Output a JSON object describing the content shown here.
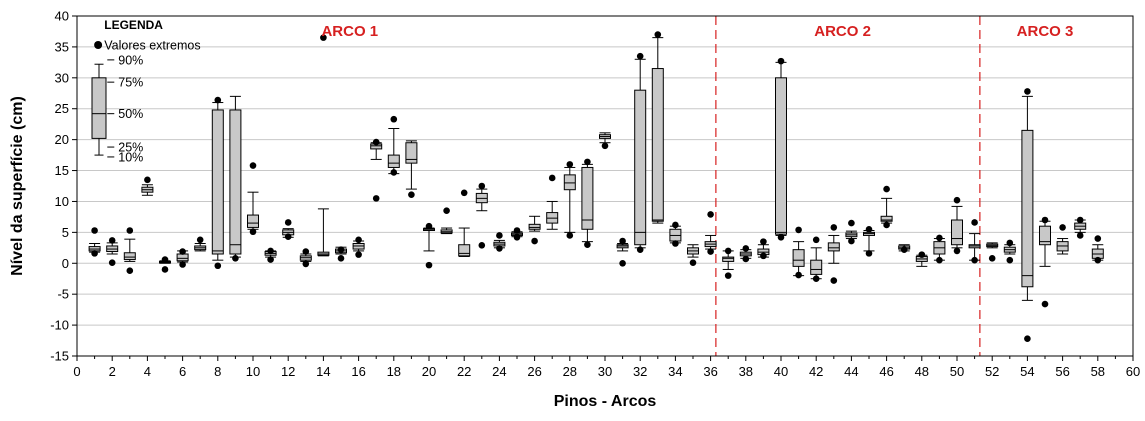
{
  "chart_data": {
    "type": "boxplot",
    "xlabel": "Pinos - Arcos",
    "ylabel": "Nível da superfície (cm)",
    "xlim": [
      0,
      60
    ],
    "ylim": [
      -15,
      40
    ],
    "xticks": [
      0,
      2,
      4,
      6,
      8,
      10,
      12,
      14,
      16,
      18,
      20,
      22,
      24,
      26,
      28,
      30,
      32,
      34,
      36,
      38,
      40,
      42,
      44,
      46,
      48,
      50,
      52,
      54,
      56,
      58,
      60
    ],
    "yticks": [
      -15,
      -10,
      -5,
      0,
      5,
      10,
      15,
      20,
      25,
      30,
      35,
      40
    ],
    "grid": "horizontal",
    "legend": {
      "title": "LEGENDA",
      "outlier_label": "Valores extremos",
      "p90": "90%",
      "p75": "75%",
      "p50": "50%",
      "p25": "25%",
      "p10": "10%",
      "example": {
        "p10": 17.5,
        "p25": 20.2,
        "med": 24.2,
        "p75": 30,
        "p90": 32.2
      }
    },
    "arcs": [
      {
        "label": "ARCO 1",
        "x": 15.5
      },
      {
        "label": "ARCO 2",
        "x": 43.5
      },
      {
        "label": "ARCO 3",
        "x": 55
      }
    ],
    "arc_separators": [
      36.3,
      51.3
    ],
    "boxes": [
      {
        "x": 1,
        "p10": 1.8,
        "p25": 2.0,
        "med": 2.3,
        "p75": 2.7,
        "p90": 3.2,
        "outliers": [
          5.3,
          1.6
        ]
      },
      {
        "x": 2,
        "p10": 1.5,
        "p25": 1.9,
        "med": 2.3,
        "p75": 2.8,
        "p90": 3.3,
        "outliers": [
          3.7,
          0.1
        ]
      },
      {
        "x": 3,
        "p10": 0.3,
        "p25": 0.6,
        "med": 1.0,
        "p75": 1.7,
        "p90": 3.9,
        "outliers": [
          5.3,
          -1.2
        ]
      },
      {
        "x": 4,
        "p10": 11.0,
        "p25": 11.5,
        "med": 11.9,
        "p75": 12.3,
        "p90": 12.7,
        "outliers": [
          13.5
        ]
      },
      {
        "x": 5,
        "p10": 0.0,
        "p25": 0.1,
        "med": 0.2,
        "p75": 0.3,
        "p90": 0.4,
        "outliers": [
          0.6,
          -1.0
        ]
      },
      {
        "x": 6,
        "p10": 0.2,
        "p25": 0.4,
        "med": 0.8,
        "p75": 1.5,
        "p90": 2.0,
        "outliers": [
          1.9,
          -0.2
        ]
      },
      {
        "x": 7,
        "p10": 2.0,
        "p25": 2.2,
        "med": 2.5,
        "p75": 2.8,
        "p90": 3.2,
        "outliers": [
          3.8
        ]
      },
      {
        "x": 8,
        "p10": 0.5,
        "p25": 1.5,
        "med": 2.0,
        "p75": 24.8,
        "p90": 26.0,
        "outliers": [
          26.4,
          -0.4
        ]
      },
      {
        "x": 9,
        "p10": 1.0,
        "p25": 1.5,
        "med": 3.0,
        "p75": 24.8,
        "p90": 27.0,
        "outliers": [
          0.8
        ]
      },
      {
        "x": 10,
        "p10": 5.5,
        "p25": 5.8,
        "med": 6.5,
        "p75": 7.8,
        "p90": 11.5,
        "outliers": [
          15.8,
          5.1
        ]
      },
      {
        "x": 11,
        "p10": 1.0,
        "p25": 1.3,
        "med": 1.6,
        "p75": 1.9,
        "p90": 2.0,
        "outliers": [
          2.0,
          0.6
        ]
      },
      {
        "x": 12,
        "p10": 4.2,
        "p25": 4.6,
        "med": 5.0,
        "p75": 5.4,
        "p90": 5.6,
        "outliers": [
          6.6,
          4.3
        ]
      },
      {
        "x": 13,
        "p10": 0.3,
        "p25": 0.5,
        "med": 0.9,
        "p75": 1.2,
        "p90": 1.5,
        "outliers": [
          1.9,
          -0.1
        ]
      },
      {
        "x": 14,
        "p10": 1.2,
        "p25": 1.3,
        "med": 1.5,
        "p75": 1.8,
        "p90": 8.8,
        "outliers": [
          36.5
        ]
      },
      {
        "x": 15,
        "p10": 1.5,
        "p25": 1.7,
        "med": 2.0,
        "p75": 2.3,
        "p90": 2.6,
        "outliers": [
          2.2,
          0.8
        ]
      },
      {
        "x": 16,
        "p10": 2.0,
        "p25": 2.3,
        "med": 2.8,
        "p75": 3.2,
        "p90": 3.6,
        "outliers": [
          3.8,
          1.4
        ]
      },
      {
        "x": 17,
        "p10": 16.8,
        "p25": 18.5,
        "med": 19.0,
        "p75": 19.3,
        "p90": 19.5,
        "outliers": [
          19.6,
          10.5
        ]
      },
      {
        "x": 18,
        "p10": 14.5,
        "p25": 15.5,
        "med": 16.2,
        "p75": 17.5,
        "p90": 21.8,
        "outliers": [
          23.3,
          14.7
        ]
      },
      {
        "x": 19,
        "p10": 12.0,
        "p25": 16.2,
        "med": 16.8,
        "p75": 19.5,
        "p90": 19.8,
        "outliers": [
          11.1
        ]
      },
      {
        "x": 20,
        "p10": 2.0,
        "p25": 5.3,
        "med": 5.5,
        "p75": 5.6,
        "p90": 5.7,
        "outliers": [
          6.0,
          -0.3
        ]
      },
      {
        "x": 21,
        "p10": 4.8,
        "p25": 4.9,
        "med": 5.1,
        "p75": 5.4,
        "p90": 5.7,
        "outliers": [
          8.5
        ]
      },
      {
        "x": 22,
        "p10": 1.1,
        "p25": 1.2,
        "med": 1.6,
        "p75": 3.0,
        "p90": 5.7,
        "outliers": [
          11.4
        ]
      },
      {
        "x": 23,
        "p10": 8.5,
        "p25": 9.8,
        "med": 10.5,
        "p75": 11.3,
        "p90": 12.0,
        "outliers": [
          12.5,
          2.9
        ]
      },
      {
        "x": 24,
        "p10": 2.5,
        "p25": 2.8,
        "med": 3.1,
        "p75": 3.4,
        "p90": 3.7,
        "outliers": [
          4.5,
          2.4
        ]
      },
      {
        "x": 25,
        "p10": 4.3,
        "p25": 4.5,
        "med": 4.7,
        "p75": 4.9,
        "p90": 5.1,
        "outliers": [
          5.3,
          4.2
        ]
      },
      {
        "x": 26,
        "p10": 5.2,
        "p25": 5.5,
        "med": 5.8,
        "p75": 6.3,
        "p90": 7.6,
        "outliers": [
          3.6
        ]
      },
      {
        "x": 27,
        "p10": 5.5,
        "p25": 6.5,
        "med": 7.3,
        "p75": 8.2,
        "p90": 10.0,
        "outliers": [
          13.8
        ]
      },
      {
        "x": 28,
        "p10": 5.0,
        "p25": 11.9,
        "med": 13.0,
        "p75": 14.3,
        "p90": 15.5,
        "outliers": [
          16.0,
          4.5
        ]
      },
      {
        "x": 29,
        "p10": 3.5,
        "p25": 5.5,
        "med": 7.0,
        "p75": 15.5,
        "p90": 16.0,
        "outliers": [
          16.4,
          3.0
        ]
      },
      {
        "x": 30,
        "p10": 19.5,
        "p25": 20.2,
        "med": 20.5,
        "p75": 20.8,
        "p90": 21.1,
        "outliers": [
          19.0
        ]
      },
      {
        "x": 31,
        "p10": 2.0,
        "p25": 2.5,
        "med": 2.8,
        "p75": 3.0,
        "p90": 3.2,
        "outliers": [
          3.6,
          0.0
        ]
      },
      {
        "x": 32,
        "p10": 2.5,
        "p25": 3.0,
        "med": 5.0,
        "p75": 28.0,
        "p90": 33.0,
        "outliers": [
          33.5,
          2.2
        ]
      },
      {
        "x": 33,
        "p10": 6.5,
        "p25": 6.8,
        "med": 7.0,
        "p75": 31.5,
        "p90": 36.5,
        "outliers": [
          37.0
        ]
      },
      {
        "x": 34,
        "p10": 3.3,
        "p25": 3.6,
        "med": 4.5,
        "p75": 5.5,
        "p90": 6.0,
        "outliers": [
          6.2,
          3.2
        ]
      },
      {
        "x": 35,
        "p10": 1.0,
        "p25": 1.5,
        "med": 2.0,
        "p75": 2.5,
        "p90": 3.0,
        "outliers": [
          0.1
        ]
      },
      {
        "x": 36,
        "p10": 2.3,
        "p25": 2.7,
        "med": 3.1,
        "p75": 3.5,
        "p90": 4.5,
        "outliers": [
          7.9,
          1.9
        ]
      },
      {
        "x": 37,
        "p10": -1.0,
        "p25": 0.3,
        "med": 0.8,
        "p75": 1.0,
        "p90": 2.0,
        "outliers": [
          2.0,
          -2.0
        ]
      },
      {
        "x": 38,
        "p10": 0.8,
        "p25": 1.2,
        "med": 1.5,
        "p75": 1.8,
        "p90": 2.2,
        "outliers": [
          2.4,
          0.7
        ]
      },
      {
        "x": 39,
        "p10": 1.0,
        "p25": 1.4,
        "med": 1.8,
        "p75": 2.3,
        "p90": 3.0,
        "outliers": [
          3.5,
          1.2
        ]
      },
      {
        "x": 40,
        "p10": 4.5,
        "p25": 4.7,
        "med": 5.0,
        "p75": 30.0,
        "p90": 32.5,
        "outliers": [
          32.7,
          4.2
        ]
      },
      {
        "x": 41,
        "p10": -2.0,
        "p25": -0.5,
        "med": 0.5,
        "p75": 2.2,
        "p90": 3.5,
        "outliers": [
          5.4,
          -1.9
        ]
      },
      {
        "x": 42,
        "p10": -2.5,
        "p25": -1.8,
        "med": -1.0,
        "p75": 0.5,
        "p90": 2.5,
        "outliers": [
          3.8,
          -2.5
        ]
      },
      {
        "x": 43,
        "p10": 0.0,
        "p25": 2.0,
        "med": 2.5,
        "p75": 3.3,
        "p90": 4.5,
        "outliers": [
          5.8,
          -2.8
        ]
      },
      {
        "x": 44,
        "p10": 4.0,
        "p25": 4.3,
        "med": 4.6,
        "p75": 4.9,
        "p90": 5.2,
        "outliers": [
          6.5,
          3.6
        ]
      },
      {
        "x": 45,
        "p10": 2.0,
        "p25": 4.5,
        "med": 4.8,
        "p75": 5.0,
        "p90": 5.3,
        "outliers": [
          5.5,
          1.6
        ]
      },
      {
        "x": 46,
        "p10": 6.5,
        "p25": 6.8,
        "med": 7.0,
        "p75": 7.6,
        "p90": 10.5,
        "outliers": [
          12.0,
          6.2
        ]
      },
      {
        "x": 47,
        "p10": 2.0,
        "p25": 2.3,
        "med": 2.5,
        "p75": 2.8,
        "p90": 3.0,
        "outliers": [
          2.2
        ]
      },
      {
        "x": 48,
        "p10": -0.5,
        "p25": 0.3,
        "med": 0.7,
        "p75": 1.1,
        "p90": 1.3,
        "outliers": [
          1.4
        ]
      },
      {
        "x": 49,
        "p10": 0.5,
        "p25": 1.5,
        "med": 2.5,
        "p75": 3.5,
        "p90": 4.0,
        "outliers": [
          4.1,
          0.5
        ]
      },
      {
        "x": 50,
        "p10": 2.5,
        "p25": 3.0,
        "med": 4.0,
        "p75": 7.0,
        "p90": 9.2,
        "outliers": [
          10.2,
          2.0
        ]
      },
      {
        "x": 51,
        "p10": 0.5,
        "p25": 2.5,
        "med": 2.8,
        "p75": 3.0,
        "p90": 4.8,
        "outliers": [
          6.6,
          0.5
        ]
      },
      {
        "x": 52,
        "p10": 2.5,
        "p25": 2.7,
        "med": 2.9,
        "p75": 3.1,
        "p90": 3.3,
        "outliers": [
          0.8
        ]
      },
      {
        "x": 53,
        "p10": 1.5,
        "p25": 1.8,
        "med": 2.2,
        "p75": 2.6,
        "p90": 3.0,
        "outliers": [
          3.3,
          0.5
        ]
      },
      {
        "x": 54,
        "p10": -6.0,
        "p25": -3.8,
        "med": -2.0,
        "p75": 21.5,
        "p90": 27.0,
        "outliers": [
          27.8,
          -12.2
        ]
      },
      {
        "x": 55,
        "p10": -0.5,
        "p25": 3.0,
        "med": 3.5,
        "p75": 6.0,
        "p90": 6.8,
        "outliers": [
          7.0,
          -6.6
        ]
      },
      {
        "x": 56,
        "p10": 1.5,
        "p25": 2.0,
        "med": 2.8,
        "p75": 3.5,
        "p90": 4.0,
        "outliers": [
          5.8
        ]
      },
      {
        "x": 57,
        "p10": 5.0,
        "p25": 5.5,
        "med": 6.0,
        "p75": 6.5,
        "p90": 7.0,
        "outliers": [
          7.0,
          4.5
        ]
      },
      {
        "x": 58,
        "p10": 0.5,
        "p25": 0.8,
        "med": 1.5,
        "p75": 2.3,
        "p90": 3.0,
        "outliers": [
          4.0,
          0.5
        ]
      }
    ]
  }
}
